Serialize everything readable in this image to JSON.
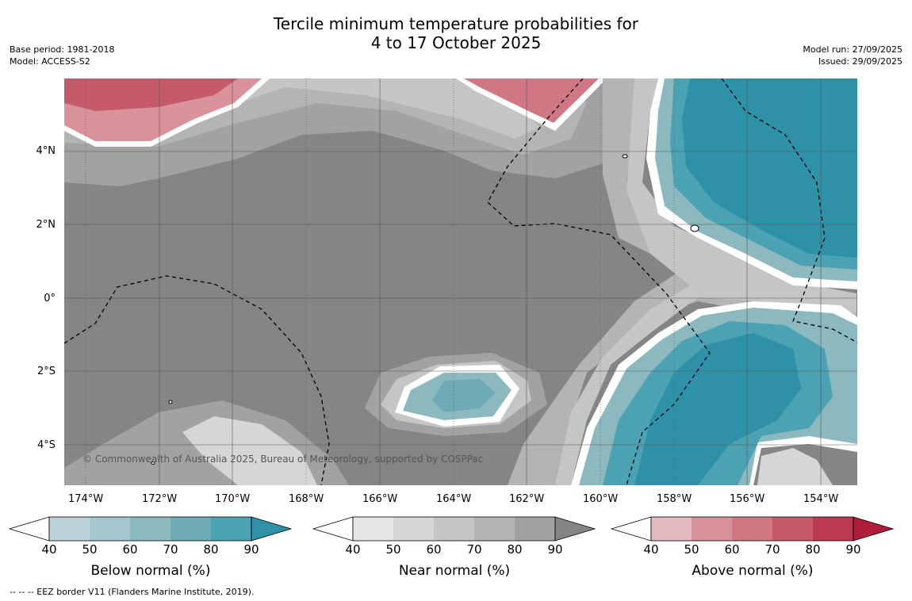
{
  "title": {
    "line1": "Tercile minimum temperature probabilities for",
    "line2": "4 to 17 October 2025"
  },
  "meta": {
    "base_period": "Base period: 1981-2018",
    "model": "Model: ACCESS-S2",
    "model_run": "Model run: 27/09/2025",
    "issued": "Issued: 29/09/2025"
  },
  "map": {
    "copyright": "© Commonwealth of Australia 2025, Bureau of Meteorology, supported by COSPPac",
    "lat_labels": [
      "4°N",
      "2°N",
      "0°",
      "2°S",
      "4°S"
    ],
    "lon_labels": [
      "174°W",
      "172°W",
      "170°W",
      "168°W",
      "166°W",
      "164°W",
      "162°W",
      "160°W",
      "158°W",
      "156°W",
      "154°W"
    ],
    "background_color": "#858585"
  },
  "colorbars": [
    {
      "title": "Below normal (%)",
      "ticks": [
        "40",
        "50",
        "60",
        "70",
        "80",
        "90"
      ],
      "colors": [
        "#ffffff",
        "#bcd3da",
        "#a5c6cc",
        "#8cb9c0",
        "#6eabb7",
        "#4ba2b2",
        "#2e91a7"
      ]
    },
    {
      "title": "Near normal (%)",
      "ticks": [
        "40",
        "50",
        "60",
        "70",
        "80",
        "90"
      ],
      "colors": [
        "#ffffff",
        "#e6e6e6",
        "#d6d6d6",
        "#c5c5c5",
        "#b4b4b4",
        "#a2a2a2",
        "#858585"
      ]
    },
    {
      "title": "Above normal (%)",
      "ticks": [
        "40",
        "50",
        "60",
        "70",
        "80",
        "90"
      ],
      "colors": [
        "#ffffff",
        "#e3b9bf",
        "#d99299",
        "#cf7883",
        "#c55a69",
        "#bb3a4f",
        "#b11c3c"
      ]
    }
  ],
  "footnote": "--  --  -- EEZ border V11 (Flanders Marine Institute, 2019)."
}
